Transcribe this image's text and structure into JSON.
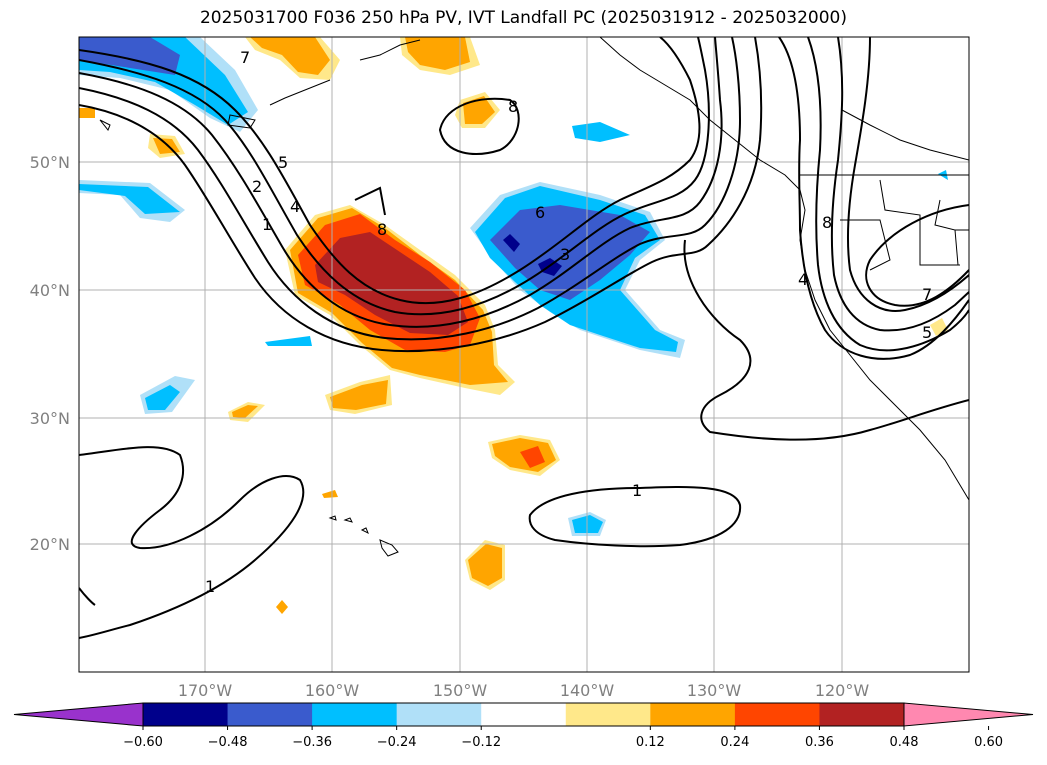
{
  "title": "2025031700 F036 250 hPa PV, IVT Landfall PC (2025031912 - 2025032000)",
  "lon_ticks": [
    "170°W",
    "160°W",
    "150°W",
    "140°W",
    "130°W",
    "120°W"
  ],
  "lat_ticks": [
    "50°N",
    "40°N",
    "30°N",
    "20°N"
  ],
  "colorbar": {
    "ticks": [
      "−0.60",
      "−0.48",
      "−0.36",
      "−0.24",
      "−0.12",
      "0.12",
      "0.24",
      "0.36",
      "0.48",
      "0.60"
    ],
    "colors": [
      "#9932cc",
      "#00008b",
      "#3a5bcd",
      "#00bfff",
      "#b0e0f8",
      "#ffffff",
      "#ffe88a",
      "#ffa500",
      "#ff4500",
      "#b22222",
      "#ff88b0"
    ]
  },
  "contour_labels": [
    "7",
    "8",
    "5",
    "4",
    "2",
    "1",
    "8",
    "6",
    "3",
    "8",
    "4",
    "7",
    "5",
    "1",
    "1"
  ],
  "colors": {
    "grid": "#b0b0b0",
    "tick_label": "#808080",
    "contour": "#000000"
  }
}
